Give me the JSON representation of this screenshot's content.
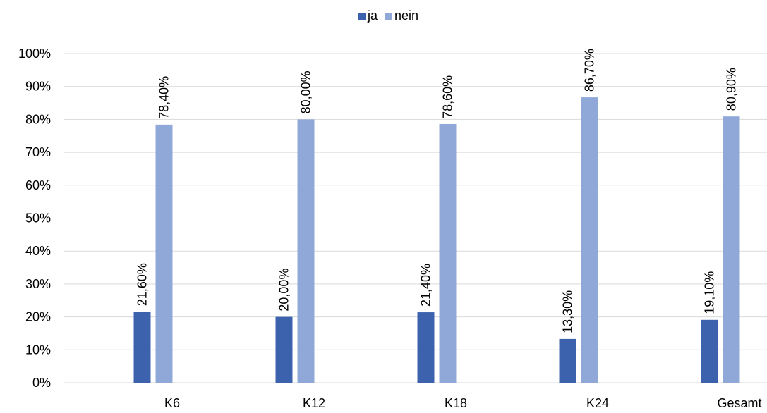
{
  "chart_data": {
    "type": "bar",
    "categories": [
      "K6",
      "K12",
      "K18",
      "K24",
      "Gesamt"
    ],
    "series": [
      {
        "name": "ja",
        "color": "#3C62AE",
        "values": [
          21.6,
          20.0,
          21.4,
          13.3,
          19.1
        ],
        "labels": [
          "21,60%",
          "20,00%",
          "21,40%",
          "13,30%",
          "19,10%"
        ]
      },
      {
        "name": "nein",
        "color": "#8FA8D8",
        "values": [
          78.4,
          80.0,
          78.6,
          86.7,
          80.9
        ],
        "labels": [
          "78,40%",
          "80,00%",
          "78,60%",
          "86,70%",
          "80,90%"
        ]
      }
    ],
    "ylim": [
      0,
      100
    ],
    "yticks": [
      "0%",
      "10%",
      "20%",
      "30%",
      "40%",
      "50%",
      "60%",
      "70%",
      "80%",
      "90%",
      "100%"
    ],
    "grid": true,
    "gridline_color": "#D9D9D9",
    "legend_position": "top-center",
    "data_labels": "vertical, above bars"
  }
}
